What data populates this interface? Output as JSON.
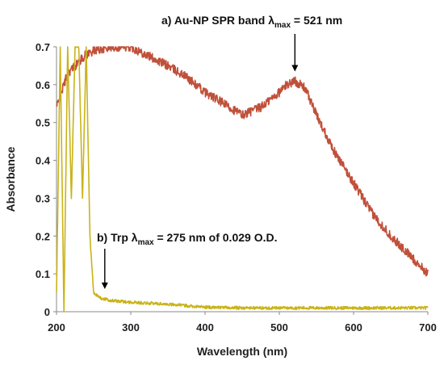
{
  "chart_data": {
    "type": "line",
    "xlabel": "Wavelength (nm)",
    "ylabel": "Absorbance",
    "xlim": [
      200,
      700
    ],
    "ylim": [
      0,
      0.7
    ],
    "xticks": [
      "200",
      "300",
      "400",
      "500",
      "600",
      "700"
    ],
    "yticks": [
      "0",
      "0.1",
      "0.2",
      "0.3",
      "0.4",
      "0.5",
      "0.6",
      "0.7"
    ],
    "grid": false,
    "series": [
      {
        "id": "au-np",
        "color": "#c0503a",
        "x": [
          200,
          215,
          230,
          240,
          250,
          275,
          300,
          325,
          350,
          375,
          400,
          425,
          450,
          475,
          500,
          510,
          521,
          535,
          550,
          575,
          600,
          625,
          650,
          675,
          700
        ],
        "y": [
          0.54,
          0.63,
          0.66,
          0.68,
          0.69,
          0.7,
          0.7,
          0.675,
          0.65,
          0.62,
          0.58,
          0.55,
          0.52,
          0.54,
          0.58,
          0.6,
          0.61,
          0.59,
          0.52,
          0.42,
          0.34,
          0.26,
          0.2,
          0.15,
          0.1
        ],
        "noise": 0.012
      },
      {
        "id": "trp",
        "color": "#c9b31a",
        "x": [
          200,
          205,
          210,
          215,
          220,
          225,
          230,
          235,
          240,
          245,
          250,
          260,
          275,
          300,
          350,
          400,
          450,
          500,
          550,
          600,
          650,
          700
        ],
        "y": [
          0.05,
          0.7,
          0.0,
          0.7,
          0.3,
          0.7,
          0.7,
          0.3,
          0.7,
          0.2,
          0.05,
          0.035,
          0.029,
          0.025,
          0.02,
          0.012,
          0.01,
          0.01,
          0.01,
          0.01,
          0.01,
          0.01
        ],
        "noise": 0.004
      }
    ],
    "annotations": [
      {
        "id": "au-np-band",
        "text_prefix": "a) Au-NP SPR band  λ",
        "subscript": "max",
        "text_suffix": " = 521 nm",
        "arrow_x": 521,
        "arrow_y": 0.635
      },
      {
        "id": "trp",
        "text_prefix": "b) Trp λ",
        "subscript": "max",
        "text_suffix": " = 275 nm of 0.029 O.D.",
        "arrow_x": 265,
        "arrow_y": 0.06
      }
    ]
  }
}
